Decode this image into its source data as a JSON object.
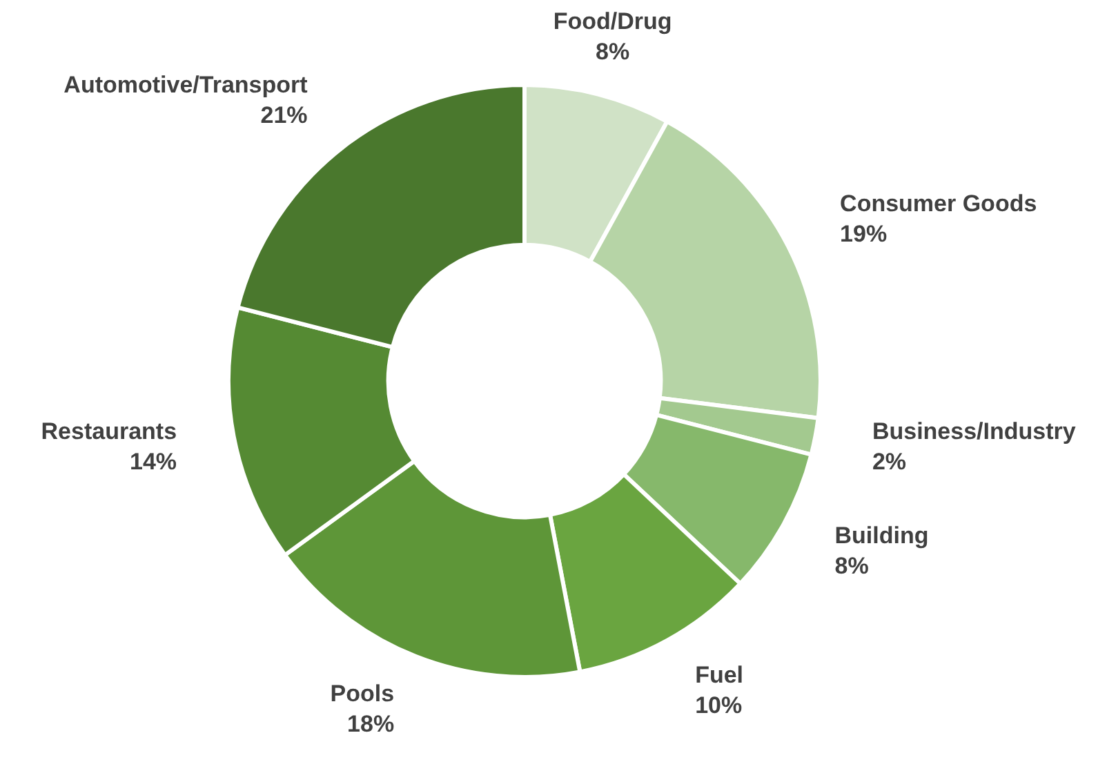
{
  "chart_data": {
    "type": "donut",
    "categories": [
      "Food/Drug",
      "Consumer Goods",
      "Business/Industry",
      "Building",
      "Fuel",
      "Pools",
      "Restaurants",
      "Automotive/Transport"
    ],
    "values": [
      8,
      19,
      2,
      8,
      10,
      18,
      14,
      21
    ],
    "value_labels": [
      "8%",
      "19%",
      "2%",
      "8%",
      "10%",
      "18%",
      "14%",
      "21%"
    ],
    "colors": [
      "#d0e2c6",
      "#b6d4a6",
      "#a3c98f",
      "#86b86b",
      "#6aa540",
      "#5e9638",
      "#558a33",
      "#4a782d"
    ],
    "legend": false
  }
}
